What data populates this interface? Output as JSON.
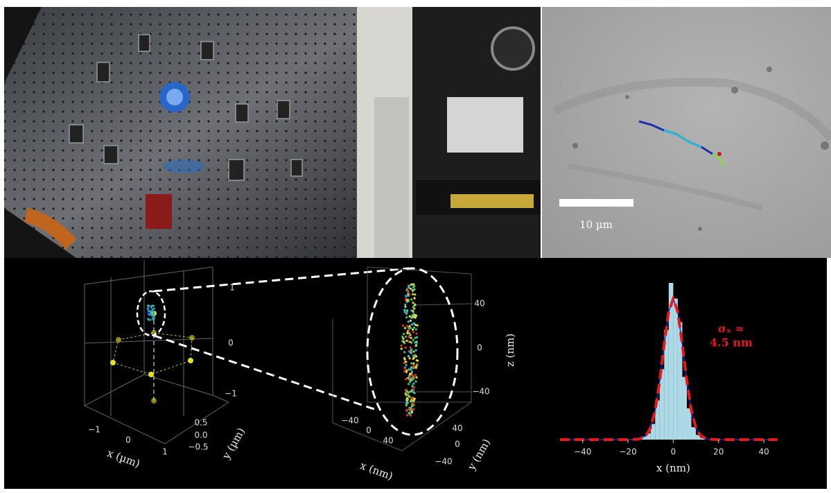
{
  "cell_image": {
    "scale_bar_label": "10 µm"
  },
  "plot_3d_um": {
    "x_label": "x (µm)",
    "y_label": "y (µm)",
    "x_ticks": [
      "−1",
      "0",
      "1"
    ],
    "y_ticks": [
      "0.5",
      "0.0",
      "−0.5"
    ],
    "z_ticks": [
      "1",
      "0",
      "−1"
    ]
  },
  "plot_3d_nm": {
    "x_label": "x (nm)",
    "y_label": "y (nm)",
    "z_label": "z (nm)",
    "x_ticks": [
      "−40",
      "0",
      "40"
    ],
    "y_ticks": [
      "40",
      "0",
      "−40"
    ],
    "z_ticks": [
      "40",
      "0",
      "−40"
    ]
  },
  "chart_data": {
    "type": "histogram",
    "xlabel": "x (nm)",
    "bins": [
      -14,
      -12,
      -10,
      -8,
      -6,
      -4,
      -2,
      0,
      2,
      4,
      6,
      8,
      10,
      12,
      14
    ],
    "values": [
      2,
      4,
      10,
      25,
      45,
      70,
      100,
      90,
      75,
      40,
      20,
      8,
      3,
      1
    ],
    "color": "#add8e6",
    "fit": {
      "x": [
        -50,
        -20,
        -15,
        -12,
        -10,
        -8,
        -6,
        -4,
        -2,
        0,
        2,
        4,
        6,
        8,
        10,
        12,
        15,
        20,
        46
      ],
      "values": [
        0,
        0,
        0.3,
        2.6,
        7.6,
        18.5,
        37,
        60.6,
        81.5,
        90,
        81.5,
        60.6,
        37,
        18.5,
        7.6,
        2.6,
        0.3,
        0,
        0
      ],
      "color": "#e8191a"
    },
    "annotations": [
      "σₓ ≈",
      "4.5 nm"
    ],
    "xlim": [
      -50,
      47
    ],
    "ylim": [
      0,
      100
    ],
    "xticks": [
      {
        "value": -40,
        "label": "−40"
      },
      {
        "value": -20,
        "label": "−20"
      },
      0,
      20,
      40
    ]
  }
}
